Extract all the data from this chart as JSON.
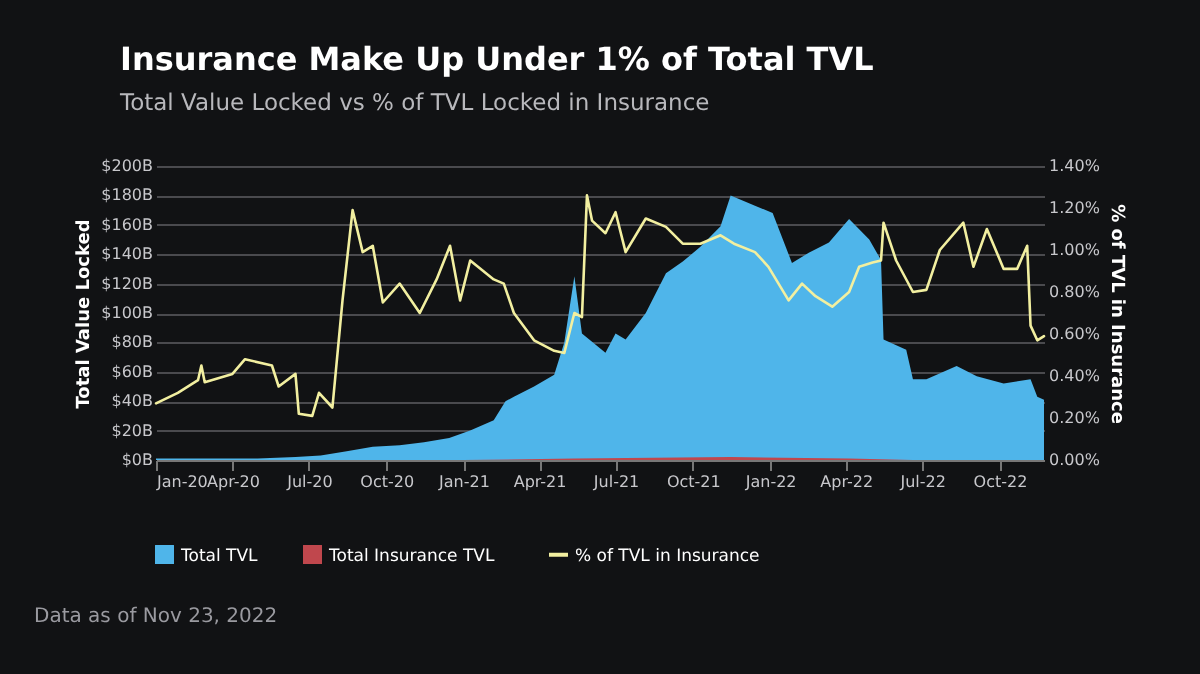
{
  "chart_data": {
    "type": "area",
    "title": "Insurance Make Up Under 1% of Total TVL",
    "subtitle": "Total Value Locked vs % of TVL Locked in Insurance",
    "ylabel": "Total Value Locked",
    "y2label": "% of TVL in Insurance",
    "annotations": [
      "Data as of Nov 23, 2022"
    ],
    "legend": "bottom",
    "grid": "y",
    "xlim": [
      "2020-01-01",
      "2022-11-23"
    ],
    "xticks": [
      {
        "value": "2020-01-01",
        "label": "Jan-20"
      },
      {
        "value": "2020-04-01",
        "label": "Apr-20"
      },
      {
        "value": "2020-07-01",
        "label": "Jul-20"
      },
      {
        "value": "2020-10-01",
        "label": "Oct-20"
      },
      {
        "value": "2021-01-01",
        "label": "Jan-21"
      },
      {
        "value": "2021-04-01",
        "label": "Apr-21"
      },
      {
        "value": "2021-07-01",
        "label": "Jul-21"
      },
      {
        "value": "2021-10-01",
        "label": "Oct-21"
      },
      {
        "value": "2022-01-01",
        "label": "Jan-22"
      },
      {
        "value": "2022-04-01",
        "label": "Apr-22"
      },
      {
        "value": "2022-07-01",
        "label": "Jul-22"
      },
      {
        "value": "2022-10-01",
        "label": "Oct-22"
      }
    ],
    "ylim": [
      0,
      200
    ],
    "yticks": [
      {
        "value": 0,
        "label": "$0B"
      },
      {
        "value": 20,
        "label": "$20B"
      },
      {
        "value": 40,
        "label": "$40B"
      },
      {
        "value": 60,
        "label": "$60B"
      },
      {
        "value": 80,
        "label": "$80B"
      },
      {
        "value": 100,
        "label": "$100B"
      },
      {
        "value": 120,
        "label": "$120B"
      },
      {
        "value": 140,
        "label": "$140B"
      },
      {
        "value": 160,
        "label": "$160B"
      },
      {
        "value": 180,
        "label": "$180B"
      },
      {
        "value": 200,
        "label": "$200B"
      }
    ],
    "y2lim": [
      0,
      1.4
    ],
    "y2ticks": [
      {
        "value": 0,
        "label": "0.00%"
      },
      {
        "value": 0.2,
        "label": "0.20%"
      },
      {
        "value": 0.4,
        "label": "0.40%"
      },
      {
        "value": 0.6,
        "label": "0.60%"
      },
      {
        "value": 0.8,
        "label": "0.80%"
      },
      {
        "value": 1.0,
        "label": "1.00%"
      },
      {
        "value": 1.2,
        "label": "1.20%"
      },
      {
        "value": 1.4,
        "label": "1.40%"
      }
    ],
    "series": [
      {
        "name": "Total TVL",
        "color": "#4fb5ea",
        "x": [
          "2020-01-01",
          "2020-03-01",
          "2020-05-01",
          "2020-06-15",
          "2020-07-15",
          "2020-08-15",
          "2020-09-15",
          "2020-10-17",
          "2020-11-15",
          "2020-12-15",
          "2021-01-09",
          "2021-02-06",
          "2021-02-20",
          "2021-03-02",
          "2021-03-26",
          "2021-04-19",
          "2021-05-01",
          "2021-05-13",
          "2021-05-22",
          "2021-06-19",
          "2021-07-01",
          "2021-07-13",
          "2021-08-06",
          "2021-08-30",
          "2021-09-19",
          "2021-10-10",
          "2021-11-03",
          "2021-11-15",
          "2021-12-14",
          "2022-01-04",
          "2022-01-27",
          "2022-02-16",
          "2022-03-12",
          "2022-04-05",
          "2022-04-29",
          "2022-05-13",
          "2022-05-16",
          "2022-06-12",
          "2022-06-20",
          "2022-07-06",
          "2022-08-11",
          "2022-09-04",
          "2022-10-06",
          "2022-11-07",
          "2022-11-15",
          "2022-11-23"
        ],
        "values": [
          1,
          1,
          1,
          2,
          3,
          6,
          9,
          10,
          12,
          15,
          20,
          27,
          40,
          43,
          50,
          58,
          80,
          125,
          86,
          73,
          86,
          82,
          100,
          127,
          135,
          145,
          159,
          180,
          173,
          168,
          134,
          141,
          148,
          164,
          150,
          136,
          82,
          75,
          55,
          55,
          64,
          57,
          52,
          55,
          43,
          41
        ]
      },
      {
        "name": "Total Insurance TVL",
        "color": "#c0474d",
        "x": [
          "2020-01-01",
          "2020-09-01",
          "2021-01-01",
          "2021-05-13",
          "2021-11-15",
          "2022-04-05",
          "2022-06-20",
          "2022-11-23"
        ],
        "values": [
          0,
          0,
          0,
          1,
          2,
          1,
          0,
          0
        ]
      },
      {
        "name": "% of TVL in Insurance",
        "type": "line",
        "axis": "y2",
        "color": "#f2efa0",
        "x": [
          "2020-01-01",
          "2020-01-27",
          "2020-02-20",
          "2020-02-24",
          "2020-02-28",
          "2020-04-01",
          "2020-04-16",
          "2020-05-18",
          "2020-05-26",
          "2020-06-15",
          "2020-06-19",
          "2020-07-05",
          "2020-07-13",
          "2020-07-29",
          "2020-08-10",
          "2020-08-22",
          "2020-09-03",
          "2020-09-15",
          "2020-09-27",
          "2020-10-17",
          "2020-11-10",
          "2020-11-30",
          "2020-12-16",
          "2020-12-28",
          "2021-01-09",
          "2021-02-06",
          "2021-02-18",
          "2021-03-02",
          "2021-03-26",
          "2021-04-19",
          "2021-05-01",
          "2021-05-13",
          "2021-05-22",
          "2021-05-28",
          "2021-06-03",
          "2021-06-19",
          "2021-07-01",
          "2021-07-13",
          "2021-08-06",
          "2021-08-30",
          "2021-09-19",
          "2021-10-10",
          "2021-11-03",
          "2021-11-19",
          "2021-12-14",
          "2021-12-30",
          "2022-01-23",
          "2022-02-08",
          "2022-02-24",
          "2022-03-16",
          "2022-04-05",
          "2022-04-17",
          "2022-05-03",
          "2022-05-13",
          "2022-05-16",
          "2022-05-31",
          "2022-06-20",
          "2022-07-06",
          "2022-07-22",
          "2022-08-19",
          "2022-08-31",
          "2022-09-16",
          "2022-10-06",
          "2022-10-22",
          "2022-11-03",
          "2022-11-07",
          "2022-11-15",
          "2022-11-23"
        ],
        "values": [
          0.27,
          0.32,
          0.38,
          0.45,
          0.37,
          0.41,
          0.48,
          0.45,
          0.35,
          0.41,
          0.22,
          0.21,
          0.32,
          0.25,
          0.76,
          1.19,
          0.99,
          1.02,
          0.75,
          0.84,
          0.7,
          0.86,
          1.02,
          0.76,
          0.95,
          0.86,
          0.84,
          0.7,
          0.57,
          0.52,
          0.51,
          0.7,
          0.68,
          1.26,
          1.14,
          1.08,
          1.18,
          0.99,
          1.15,
          1.11,
          1.03,
          1.03,
          1.07,
          1.03,
          0.99,
          0.92,
          0.76,
          0.84,
          0.78,
          0.73,
          0.8,
          0.92,
          0.94,
          0.95,
          1.13,
          0.95,
          0.8,
          0.81,
          1.0,
          1.13,
          0.92,
          1.1,
          0.91,
          0.91,
          1.02,
          0.64,
          0.57,
          0.59
        ]
      }
    ]
  }
}
